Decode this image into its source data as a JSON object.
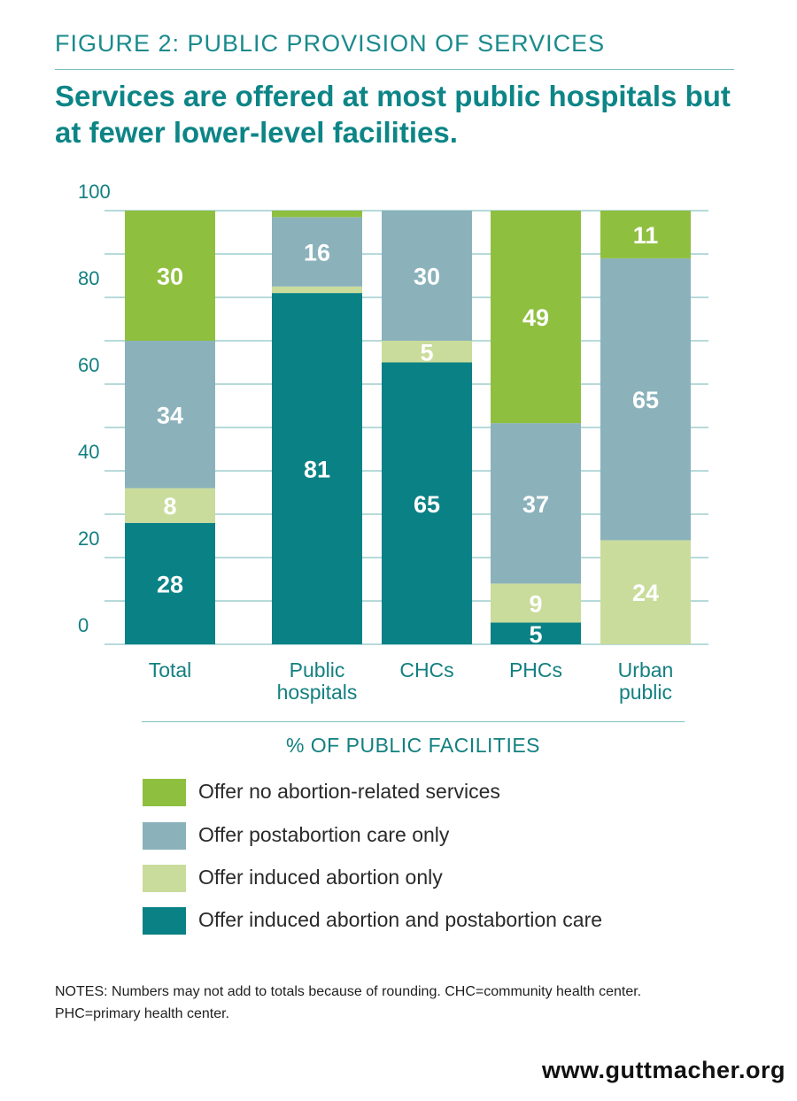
{
  "figure_label": "FIGURE 2: PUBLIC PROVISION OF SERVICES",
  "headline": "Services are offered at most public hospitals but at fewer lower-level facilities.",
  "axis_caption": "% OF PUBLIC FACILITIES",
  "notes": "NOTES: Numbers may not add to totals because of rounding. CHC=community health center. PHC=primary health center.",
  "url": "www.guttmacher.org",
  "chart_data": {
    "type": "bar",
    "stacked": true,
    "ylim": [
      0,
      100
    ],
    "yticks": [
      0,
      20,
      40,
      60,
      80,
      100
    ],
    "grid": true,
    "xlabel": "% OF PUBLIC FACILITIES",
    "categories": [
      [
        "Total"
      ],
      [
        "Public",
        "hospitals"
      ],
      [
        "CHCs"
      ],
      [
        "PHCs"
      ],
      [
        "Urban",
        "public"
      ]
    ],
    "series": [
      {
        "name": "Offer induced abortion and postabortion care",
        "color": "#0a8185",
        "values": [
          28,
          81,
          65,
          5,
          0
        ],
        "labels": [
          "28",
          "81",
          "65",
          "5",
          ""
        ]
      },
      {
        "name": "Offer induced abortion only",
        "color": "#c9dc9b",
        "values": [
          8,
          1.5,
          5,
          9,
          24
        ],
        "labels": [
          "8",
          "",
          "5",
          "9",
          "24"
        ]
      },
      {
        "name": "Offer postabortion care only",
        "color": "#8bb2bb",
        "values": [
          34,
          16,
          30,
          37,
          65
        ],
        "labels": [
          "34",
          "16",
          "30",
          "37",
          "65"
        ]
      },
      {
        "name": "Offer no abortion-related services",
        "color": "#8fbf3f",
        "values": [
          30,
          1.5,
          0,
          49,
          11
        ],
        "labels": [
          "30",
          "",
          "",
          "49",
          "11"
        ]
      }
    ]
  },
  "legend": [
    {
      "label": "Offer no abortion-related services",
      "color": "#8fbf3f"
    },
    {
      "label": "Offer postabortion care only",
      "color": "#8bb2bb"
    },
    {
      "label": "Offer induced abortion only",
      "color": "#c9dc9b"
    },
    {
      "label": "Offer induced abortion and postabortion care",
      "color": "#0a8185"
    }
  ]
}
